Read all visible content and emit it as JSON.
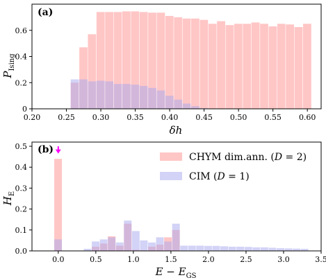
{
  "colors": {
    "red": "#ffa0a0",
    "blue": "#a8a8f0",
    "arrow": "#ff00ff",
    "red_alpha": 0.6,
    "blue_alpha": 0.5
  },
  "chart_data": [
    {
      "type": "bar",
      "panel": "(a)",
      "xlabel": "δh",
      "ylabel": "P_Ising",
      "ylabel_main": "P",
      "ylabel_sub": "Ising",
      "xlim": [
        0.2,
        0.62
      ],
      "ylim": [
        0,
        0.8
      ],
      "xticks": [
        0.2,
        0.25,
        0.3,
        0.35,
        0.4,
        0.45,
        0.5,
        0.55,
        0.6
      ],
      "xtick_labels": [
        "0.20",
        "0.25",
        "0.30",
        "0.35",
        "0.40",
        "0.45",
        "0.50",
        "0.55",
        "0.60"
      ],
      "yticks": [
        0,
        0.2,
        0.4,
        0.6
      ],
      "ytick_labels": [
        "0",
        "0.2",
        "0.4",
        "0.6"
      ],
      "bin_width": 0.0125,
      "series": [
        {
          "color": "red",
          "x": [
            0.2625,
            0.275,
            0.2875,
            0.3,
            0.3125,
            0.325,
            0.3375,
            0.35,
            0.3625,
            0.375,
            0.3875,
            0.4,
            0.4125,
            0.425,
            0.4375,
            0.45,
            0.4625,
            0.475,
            0.4875,
            0.5,
            0.5125,
            0.525,
            0.5375,
            0.55,
            0.5625,
            0.575,
            0.5875,
            0.6
          ],
          "values": [
            0.2,
            0.47,
            0.57,
            0.74,
            0.74,
            0.74,
            0.745,
            0.745,
            0.74,
            0.735,
            0.735,
            0.71,
            0.7,
            0.69,
            0.69,
            0.68,
            0.65,
            0.67,
            0.64,
            0.65,
            0.65,
            0.66,
            0.65,
            0.63,
            0.65,
            0.645,
            0.625,
            0.65
          ]
        },
        {
          "color": "blue",
          "x": [
            0.2625,
            0.275,
            0.2875,
            0.3,
            0.3125,
            0.325,
            0.3375,
            0.35,
            0.3625,
            0.375,
            0.3875,
            0.4,
            0.4125,
            0.425,
            0.4375,
            0.45
          ],
          "values": [
            0.225,
            0.225,
            0.21,
            0.215,
            0.21,
            0.19,
            0.19,
            0.185,
            0.175,
            0.16,
            0.14,
            0.1,
            0.07,
            0.04,
            0.02,
            0.005
          ]
        }
      ]
    },
    {
      "type": "bar",
      "panel": "(b)",
      "xlabel": "E − E_GS",
      "xlabel_main": "E − E",
      "xlabel_sub": "GS",
      "ylabel": "H_E",
      "ylabel_main": "H",
      "ylabel_sub": "E",
      "xlim": [
        -0.35,
        3.5
      ],
      "ylim": [
        0,
        0.52
      ],
      "xticks": [
        0,
        0.5,
        1,
        1.5,
        2,
        2.5,
        3,
        3.5
      ],
      "xtick_labels": [
        "0.0",
        "0.5",
        "1.0",
        "1.5",
        "2.0",
        "2.5",
        "3.0",
        "3.5"
      ],
      "yticks": [
        0,
        0.1,
        0.2,
        0.3,
        0.4,
        0.5
      ],
      "ytick_labels": [
        "0.0",
        "0.1",
        "0.2",
        "0.3",
        "0.4",
        "0.5"
      ],
      "bin_width": 0.107,
      "legend_position": "top-right",
      "annotation": {
        "type": "arrow",
        "x": 0.0,
        "y_from": 0.5,
        "y_to": 0.465
      },
      "series": [
        {
          "name": "CHYM dim.ann. (D = 2)",
          "legend_main": "CHYM dim.ann. (",
          "legend_var": "D",
          "legend_rest": " = 2)",
          "color": "red",
          "x": [
            0,
            0.5,
            0.607,
            0.714,
            0.821,
            0.928,
            1.035,
            1.142,
            1.249,
            1.356,
            1.463,
            1.57
          ],
          "values": [
            0.44,
            0.02,
            0.035,
            0.07,
            0.025,
            0.13,
            0.005,
            0.003,
            0.02,
            0.03,
            0.065,
            0.1
          ]
        },
        {
          "name": "CIM (D = 1)",
          "legend_main": "CIM (",
          "legend_var": "D",
          "legend_rest": " = 1)",
          "color": "blue",
          "x": [
            0,
            0.393,
            0.5,
            0.607,
            0.714,
            0.821,
            0.928,
            1.035,
            1.142,
            1.249,
            1.356,
            1.463,
            1.57,
            1.677,
            1.784,
            1.891,
            1.998,
            2.105,
            2.212,
            2.319,
            2.426,
            2.533,
            2.64,
            2.747,
            2.854,
            2.961,
            3.068,
            3.175,
            3.282
          ],
          "values": [
            0.055,
            0.01,
            0.045,
            0.055,
            0.065,
            0.04,
            0.145,
            0.095,
            0.05,
            0.04,
            0.065,
            0.045,
            0.13,
            0.025,
            0.025,
            0.025,
            0.024,
            0.024,
            0.022,
            0.02,
            0.02,
            0.019,
            0.017,
            0.017,
            0.015,
            0.013,
            0.012,
            0.011,
            0.01
          ]
        }
      ]
    }
  ]
}
